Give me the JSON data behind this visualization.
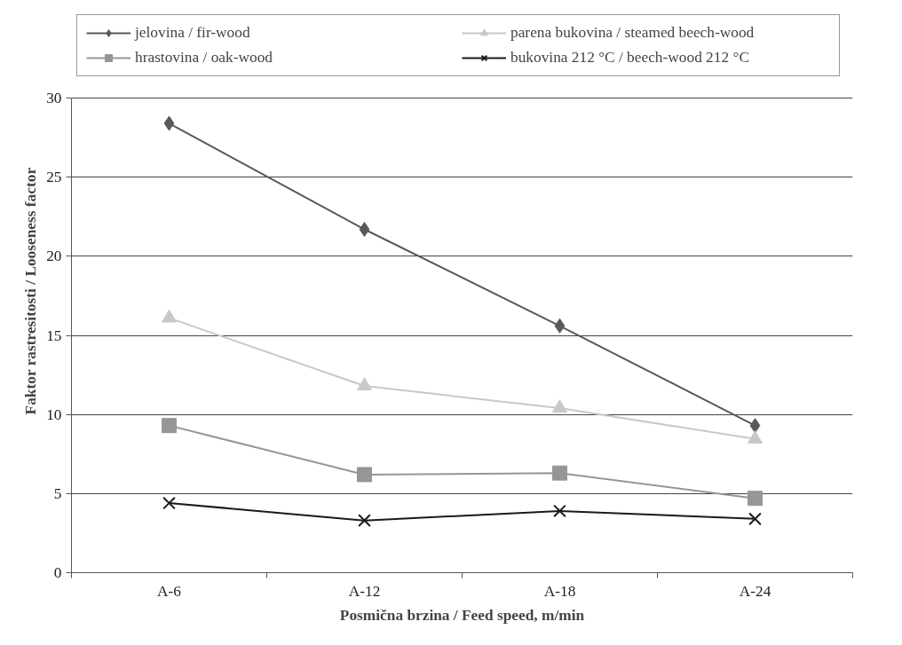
{
  "chart_data": {
    "type": "line",
    "xlabel": "Posmična brzina / Feed speed, m/min",
    "ylabel": "Faktor rastresitosti / Looseness factor",
    "categories": [
      "A-6",
      "A-12",
      "A-18",
      "A-24"
    ],
    "series": [
      {
        "name": "jelovina / fir-wood",
        "color": "#595959",
        "marker": "diamond",
        "values": [
          28.4,
          21.7,
          15.6,
          9.3
        ]
      },
      {
        "name": "hrastovina / oak-wood",
        "color": "#969696",
        "marker": "square",
        "values": [
          9.3,
          6.2,
          6.3,
          4.7
        ]
      },
      {
        "name": "parena bukovina / steamed beech-wood",
        "color": "#c8c8c8",
        "marker": "triangle",
        "values": [
          16.1,
          11.8,
          10.4,
          8.45
        ]
      },
      {
        "name": "bukovina 212 °C / beech-wood 212 °C",
        "color": "#1a1a1a",
        "marker": "cross",
        "values": [
          4.4,
          3.3,
          3.9,
          3.4
        ]
      }
    ],
    "ylim": [
      0,
      30
    ],
    "yticks": [
      0,
      5,
      10,
      15,
      20,
      25,
      30
    ],
    "grid": "y",
    "legend": "top",
    "line_style": "solid"
  }
}
